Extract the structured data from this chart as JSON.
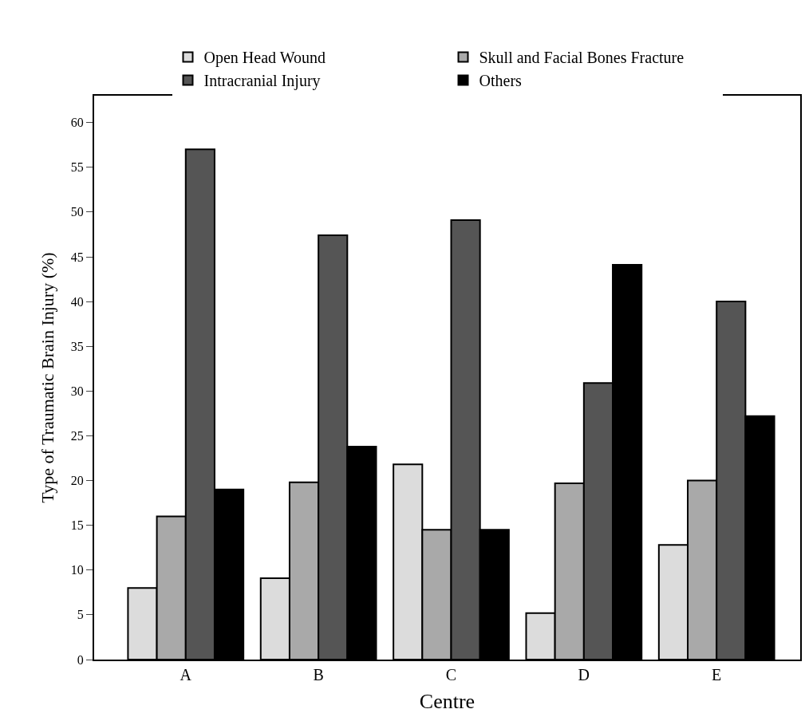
{
  "chart_data": {
    "type": "bar",
    "xlabel": "Centre",
    "ylabel": "Type of Traumatic Brain Injury (%)",
    "categories": [
      "A",
      "B",
      "C",
      "D",
      "E"
    ],
    "series": [
      {
        "name": "Open Head Wound",
        "color": "#dcdcdc",
        "values": [
          8,
          9.1,
          21.8,
          5.2,
          12.8
        ]
      },
      {
        "name": "Skull and Facial Bones Fracture",
        "color": "#a9a9a9",
        "values": [
          16,
          19.8,
          14.5,
          19.7,
          20
        ]
      },
      {
        "name": "Intracranial Injury",
        "color": "#555555",
        "values": [
          57,
          47.4,
          49.1,
          30.9,
          40
        ]
      },
      {
        "name": "Others",
        "color": "#000000",
        "values": [
          19,
          23.8,
          14.5,
          44.1,
          27.2
        ]
      }
    ],
    "ylim": [
      0,
      63
    ],
    "yticks": [
      0,
      5,
      10,
      15,
      20,
      25,
      30,
      35,
      40,
      45,
      50,
      55,
      60
    ],
    "legend": "top"
  }
}
